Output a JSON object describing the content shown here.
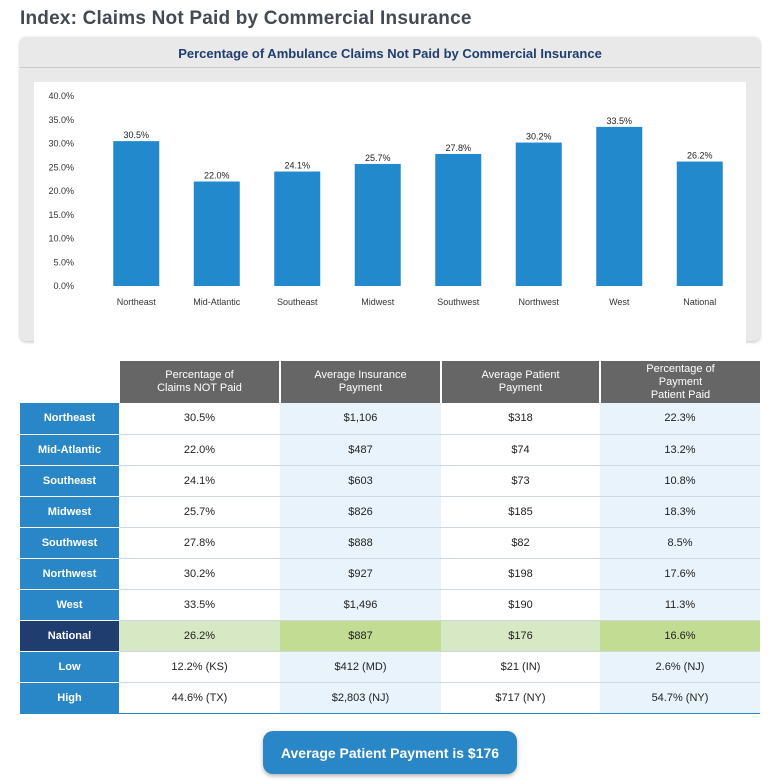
{
  "page": {
    "title": "Index: Claims Not Paid by Commercial Insurance"
  },
  "chart_data": {
    "type": "bar",
    "title": "Percentage of Ambulance Claims Not Paid by Commercial Insurance",
    "categories": [
      "Northeast",
      "Mid-Atlantic",
      "Southeast",
      "Midwest",
      "Southwest",
      "Northwest",
      "West",
      "National"
    ],
    "values": [
      30.5,
      22.0,
      24.1,
      25.7,
      27.8,
      30.2,
      33.5,
      26.2
    ],
    "value_labels": [
      "30.5%",
      "22.0%",
      "24.1%",
      "25.7%",
      "27.8%",
      "30.2%",
      "33.5%",
      "26.2%"
    ],
    "ylim": [
      0,
      40
    ],
    "yticks": [
      0,
      5,
      10,
      15,
      20,
      25,
      30,
      35,
      40
    ],
    "ytick_labels": [
      "0.0%",
      "5.0%",
      "10.0%",
      "15.0%",
      "20.0%",
      "25.0%",
      "30.0%",
      "35.0%",
      "40.0%"
    ],
    "xlabel": "",
    "ylabel": "",
    "grid": false,
    "bar_color": "#2389cd"
  },
  "table": {
    "headers": [
      [
        "Percentage of",
        "Claims NOT Paid"
      ],
      [
        "Average Insurance",
        "Payment"
      ],
      [
        "Average Patient",
        "Payment"
      ],
      [
        "Percentage of Payment",
        "Patient Paid"
      ]
    ],
    "rows": [
      {
        "label": "Northeast",
        "cells": [
          "30.5%",
          "$1,106",
          "$318",
          "22.3%"
        ]
      },
      {
        "label": "Mid-Atlantic",
        "cells": [
          "22.0%",
          "$487",
          "$74",
          "13.2%"
        ]
      },
      {
        "label": "Southeast",
        "cells": [
          "24.1%",
          "$603",
          "$73",
          "10.8%"
        ]
      },
      {
        "label": "Midwest",
        "cells": [
          "25.7%",
          "$826",
          "$185",
          "18.3%"
        ]
      },
      {
        "label": "Southwest",
        "cells": [
          "27.8%",
          "$888",
          "$82",
          "8.5%"
        ]
      },
      {
        "label": "Northwest",
        "cells": [
          "30.2%",
          "$927",
          "$198",
          "17.6%"
        ]
      },
      {
        "label": "West",
        "cells": [
          "33.5%",
          "$1,496",
          "$190",
          "11.3%"
        ]
      },
      {
        "label": "National",
        "cells": [
          "26.2%",
          "$887",
          "$176",
          "16.6%"
        ]
      },
      {
        "label": "Low",
        "cells": [
          "12.2% (KS)",
          "$412 (MD)",
          "$21 (IN)",
          "2.6% (NJ)"
        ]
      },
      {
        "label": "High",
        "cells": [
          "44.6% (TX)",
          "$2,803 (NJ)",
          "$717 (NY)",
          "54.7% (NY)"
        ]
      }
    ]
  },
  "summary": {
    "text": "Average Patient Payment is $176"
  },
  "colors": {
    "bar": "#2389cd",
    "row_header": "#2a87c7",
    "national_row_header": "#1f3d6e",
    "table_header": "#666666"
  }
}
